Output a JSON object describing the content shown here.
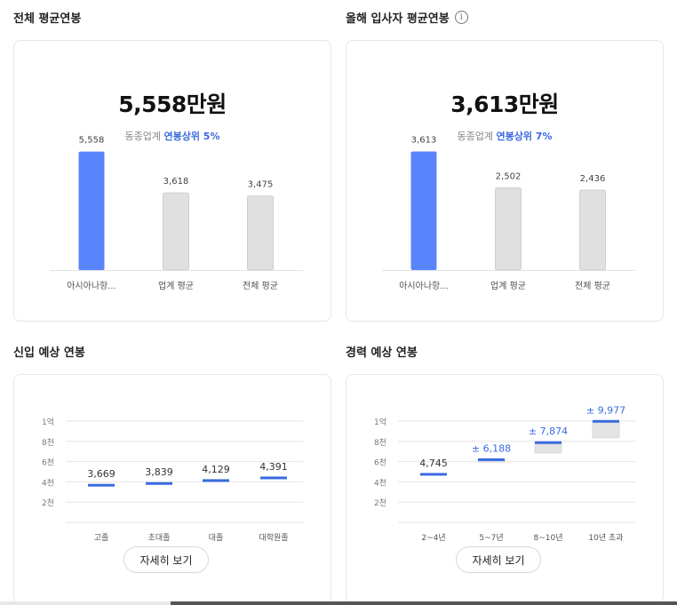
{
  "overall": {
    "title": "전체 평균연봉",
    "value": "5,558만원",
    "rank_prefix": "동종업계",
    "rank_highlight": "연봉상위 5%",
    "chart_data": {
      "type": "bar",
      "categories": [
        "아시아나항...",
        "업계 평균",
        "전체 평균"
      ],
      "values": [
        5558,
        3618,
        3475
      ],
      "value_labels": [
        "5,558",
        "3,618",
        "3,475"
      ],
      "ylim": [
        0,
        7500
      ]
    }
  },
  "newhire": {
    "title": "올해 입사자 평균연봉",
    "info_icon": "i",
    "value": "3,613만원",
    "rank_prefix": "동종업계",
    "rank_highlight": "연봉상위 7%",
    "chart_data": {
      "type": "bar",
      "categories": [
        "아시아나항...",
        "업계 평균",
        "전체 평균"
      ],
      "values": [
        3613,
        2502,
        2436
      ],
      "value_labels": [
        "3,613",
        "2,502",
        "2,436"
      ],
      "ylim": [
        0,
        4870
      ]
    }
  },
  "entry": {
    "title": "신입 예상 연봉",
    "button": "자세히 보기",
    "chart_data": {
      "type": "range",
      "y_ticks": [
        "1억",
        "8천",
        "6천",
        "4천",
        "2천"
      ],
      "y_tick_values": [
        10000,
        8000,
        6000,
        4000,
        2000
      ],
      "ylim": [
        0,
        10000
      ],
      "categories": [
        "고졸",
        "초대졸",
        "대졸",
        "대학원졸"
      ],
      "values": [
        3669,
        3839,
        4129,
        4391
      ],
      "value_labels": [
        "3,669",
        "3,839",
        "4,129",
        "4,391"
      ]
    }
  },
  "career": {
    "title": "경력 예상 연봉",
    "button": "자세히 보기",
    "chart_data": {
      "type": "range",
      "y_ticks": [
        "1억",
        "8천",
        "6천",
        "4천",
        "2천"
      ],
      "y_tick_values": [
        10000,
        8000,
        6000,
        4000,
        2000
      ],
      "ylim": [
        0,
        10000
      ],
      "categories": [
        "2~4년",
        "5~7년",
        "8~10년",
        "10년 초과"
      ],
      "values": [
        4745,
        6188,
        7874,
        9977
      ],
      "value_labels": [
        "4,745",
        "± 6,188",
        "± 7,874",
        "± 9,977"
      ],
      "range_low": [
        4745,
        5950,
        6850,
        8350
      ],
      "range_high": [
        4745,
        6188,
        7874,
        9977
      ]
    }
  },
  "colors": {
    "accent_bar": "#5a84fb",
    "grey_bar": "#e0e0e0",
    "marker": "#3a6ae0",
    "range_band": "#e3e3e3"
  }
}
